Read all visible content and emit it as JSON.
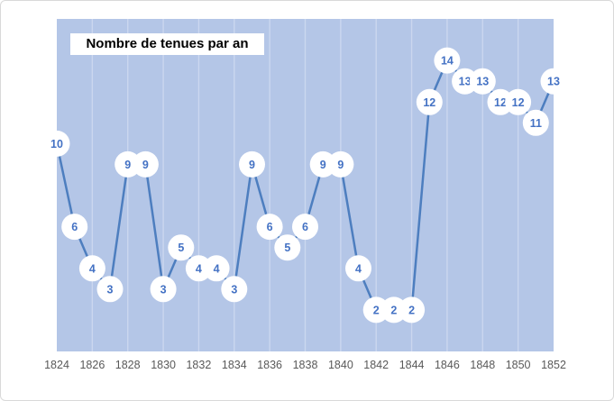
{
  "chart": {
    "title": "Nombre de tenues par an"
  },
  "chart_data": {
    "type": "line",
    "title": "Nombre de tenues par an",
    "xlabel": "",
    "ylabel": "",
    "x": [
      1824,
      1825,
      1826,
      1827,
      1828,
      1829,
      1830,
      1831,
      1832,
      1833,
      1834,
      1835,
      1836,
      1837,
      1838,
      1839,
      1840,
      1841,
      1842,
      1843,
      1844,
      1845,
      1846,
      1847,
      1848,
      1849,
      1850,
      1851,
      1852
    ],
    "values": [
      10,
      6,
      4,
      3,
      9,
      9,
      3,
      5,
      4,
      4,
      3,
      9,
      6,
      5,
      6,
      9,
      9,
      4,
      2,
      2,
      2,
      12,
      14,
      13,
      13,
      12,
      12,
      11,
      13
    ],
    "x_tick_labels": [
      "1824",
      "1826",
      "1828",
      "1830",
      "1832",
      "1834",
      "1836",
      "1838",
      "1840",
      "1842",
      "1844",
      "1846",
      "1848",
      "1850",
      "1852"
    ],
    "x_tick_step": 2,
    "ylim": [
      0,
      16
    ],
    "grid": "vertical-major",
    "legend": "none",
    "marker": "white-circle-with-value-label",
    "colors": {
      "plot_bg": "#b4c6e7",
      "line": "#4d7ebf",
      "gridline": "#cbd7ef",
      "marker_fill": "#ffffff",
      "point_label_text": "#4472c4",
      "axis_text": "#595959",
      "title_text": "#000000",
      "title_bg": "#ffffff",
      "widget_bg": "#ffffff",
      "widget_border": "#d9d9d9"
    }
  }
}
